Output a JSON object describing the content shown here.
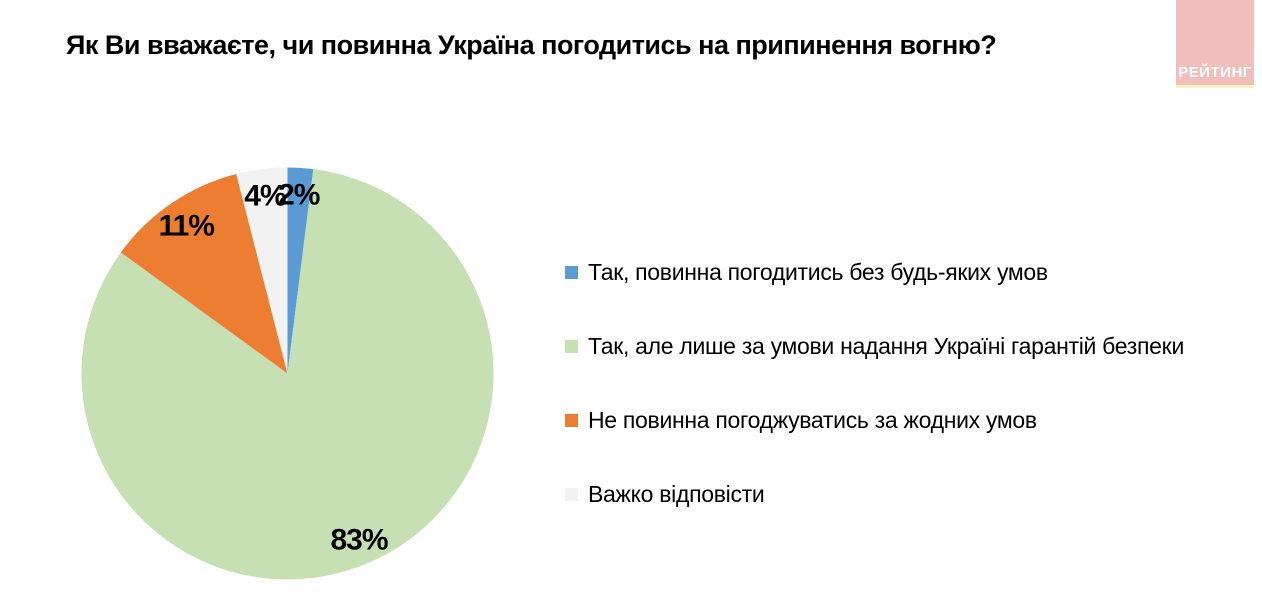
{
  "header": {
    "title": "Як Ви вважаєте, чи повинна Україна погодитись на припинення вогню?",
    "logo": {
      "text": "РЕЙТИНГ",
      "background_color": "#f2bebb",
      "text_color": "#ffffff",
      "accent_line_color": "#faf3c8"
    }
  },
  "chart_data": {
    "type": "pie",
    "title": "Як Ви вважаєте, чи повинна Україна погодитись на припинення вогню?",
    "start_angle_deg": 0,
    "direction": "clockwise",
    "legend_position": "right",
    "label_color": "#000000",
    "slices": [
      {
        "label": "Так, повинна погодитись без будь-яких умов",
        "value": 2,
        "display": "2%",
        "color": "#5b9bd5"
      },
      {
        "label": "Так, але лише за умови надання Україні гарантій безпеки",
        "value": 83,
        "display": "83%",
        "color": "#c6e0b4"
      },
      {
        "label": "Не повинна погоджуватись за жодних умов",
        "value": 11,
        "display": "11%",
        "color": "#ed7d31"
      },
      {
        "label": "Важко відповісти",
        "value": 4,
        "display": "4%",
        "color": "#f2f2f2"
      }
    ]
  }
}
